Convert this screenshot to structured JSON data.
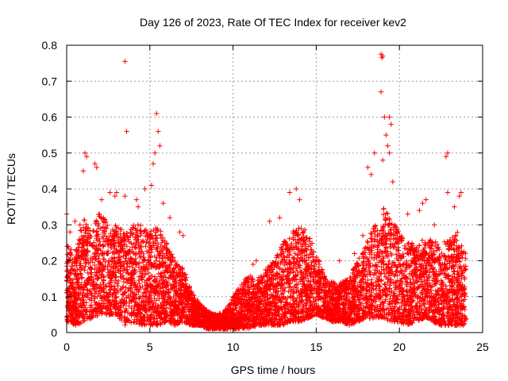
{
  "chart_data": {
    "type": "scatter",
    "title": "Day 126 of 2023, Rate Of TEC Index for receiver kev2",
    "xlabel": "GPS time / hours",
    "ylabel": "ROTI / TECUs",
    "xlim": [
      0,
      25
    ],
    "ylim": [
      0,
      0.8
    ],
    "xticks": [
      "0",
      "5",
      "10",
      "15",
      "20",
      "25"
    ],
    "yticks": [
      "0",
      "0.1",
      "0.2",
      "0.3",
      "0.4",
      "0.5",
      "0.6",
      "0.7",
      "0.8"
    ],
    "grid": true,
    "marker": "plus",
    "color": "#ff0000",
    "envelope": {
      "description_hours": [
        0,
        0.5,
        1,
        1.5,
        2,
        2.5,
        3,
        3.5,
        4,
        4.5,
        5,
        5.5,
        6,
        6.5,
        7,
        7.5,
        8,
        8.5,
        9,
        9.5,
        10,
        10.5,
        11,
        11.5,
        12,
        12.5,
        13,
        13.5,
        14,
        14.5,
        15,
        15.5,
        16,
        16.5,
        17,
        17.5,
        18,
        18.5,
        19,
        19.5,
        20,
        20.5,
        21,
        21.5,
        22,
        22.5,
        23,
        23.5,
        24
      ],
      "typical_max": [
        0.25,
        0.22,
        0.32,
        0.28,
        0.35,
        0.3,
        0.3,
        0.28,
        0.3,
        0.3,
        0.28,
        0.3,
        0.25,
        0.2,
        0.18,
        0.12,
        0.08,
        0.06,
        0.05,
        0.06,
        0.1,
        0.14,
        0.16,
        0.15,
        0.18,
        0.2,
        0.25,
        0.28,
        0.3,
        0.28,
        0.22,
        0.16,
        0.14,
        0.14,
        0.16,
        0.2,
        0.25,
        0.3,
        0.35,
        0.32,
        0.28,
        0.25,
        0.25,
        0.26,
        0.26,
        0.25,
        0.26,
        0.28,
        0.22
      ],
      "typical_min": [
        0.03,
        0.02,
        0.03,
        0.04,
        0.05,
        0.05,
        0.05,
        0.02,
        0.03,
        0.02,
        0.02,
        0.02,
        0.03,
        0.02,
        0.03,
        0.02,
        0.02,
        0.01,
        0.01,
        0.01,
        0.01,
        0.01,
        0.01,
        0.02,
        0.02,
        0.02,
        0.02,
        0.03,
        0.03,
        0.04,
        0.05,
        0.04,
        0.03,
        0.03,
        0.02,
        0.03,
        0.04,
        0.04,
        0.04,
        0.03,
        0.03,
        0.02,
        0.03,
        0.04,
        0.03,
        0.02,
        0.02,
        0.02,
        0.02
      ]
    },
    "outliers": [
      [
        3.5,
        0.755
      ],
      [
        3.6,
        0.56
      ],
      [
        5.4,
        0.61
      ],
      [
        5.5,
        0.56
      ],
      [
        5.6,
        0.52
      ],
      [
        5.3,
        0.5
      ],
      [
        5.2,
        0.47
      ],
      [
        5.1,
        0.41
      ],
      [
        4.7,
        0.4
      ],
      [
        1.1,
        0.5
      ],
      [
        1.2,
        0.49
      ],
      [
        1.7,
        0.47
      ],
      [
        1.8,
        0.46
      ],
      [
        1.0,
        0.45
      ],
      [
        2.6,
        0.39
      ],
      [
        2.9,
        0.38
      ],
      [
        3.0,
        0.39
      ],
      [
        3.5,
        0.38
      ],
      [
        4.2,
        0.37
      ],
      [
        4.3,
        0.35
      ],
      [
        0.0,
        0.33
      ],
      [
        0.5,
        0.31
      ],
      [
        5.8,
        0.36
      ],
      [
        6.2,
        0.32
      ],
      [
        6.8,
        0.28
      ],
      [
        7.0,
        0.27
      ],
      [
        13.4,
        0.39
      ],
      [
        13.8,
        0.4
      ],
      [
        14.0,
        0.37
      ],
      [
        12.8,
        0.32
      ],
      [
        12.2,
        0.31
      ],
      [
        11.2,
        0.19
      ],
      [
        11.4,
        0.2
      ],
      [
        16.4,
        0.2
      ],
      [
        17.3,
        0.22
      ],
      [
        17.8,
        0.27
      ],
      [
        18.1,
        0.46
      ],
      [
        18.3,
        0.44
      ],
      [
        18.5,
        0.5
      ],
      [
        18.9,
        0.775
      ],
      [
        18.95,
        0.765
      ],
      [
        19.0,
        0.77
      ],
      [
        18.9,
        0.67
      ],
      [
        19.1,
        0.6
      ],
      [
        19.4,
        0.6
      ],
      [
        19.5,
        0.58
      ],
      [
        19.2,
        0.55
      ],
      [
        19.3,
        0.52
      ],
      [
        19.4,
        0.5
      ],
      [
        19.6,
        0.42
      ],
      [
        19.0,
        0.48
      ],
      [
        20.5,
        0.33
      ],
      [
        21.2,
        0.34
      ],
      [
        21.4,
        0.36
      ],
      [
        21.6,
        0.37
      ],
      [
        22.9,
        0.5
      ],
      [
        22.8,
        0.49
      ],
      [
        23.6,
        0.38
      ],
      [
        23.7,
        0.39
      ],
      [
        23.3,
        0.35
      ],
      [
        22.1,
        0.3
      ],
      [
        22.9,
        0.39
      ],
      [
        0.2,
        0.28
      ],
      [
        0.8,
        0.3
      ],
      [
        2.1,
        0.37
      ]
    ]
  }
}
